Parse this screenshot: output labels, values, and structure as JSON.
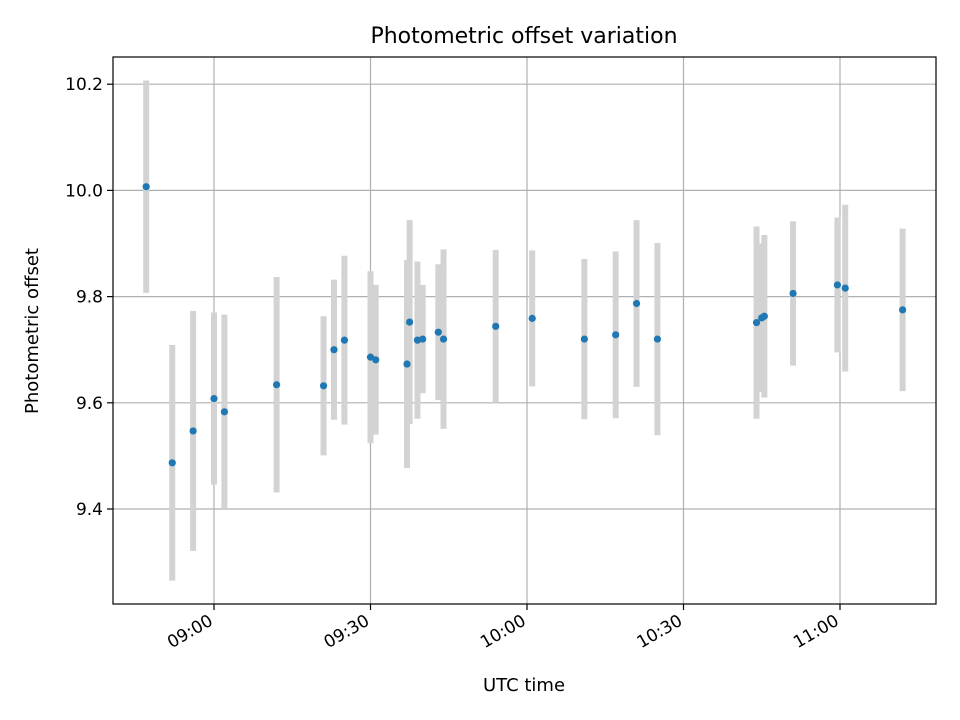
{
  "chart_data": {
    "type": "scatter",
    "title": "Photometric offset variation",
    "xlabel": "UTC time",
    "ylabel": "Photometric offset",
    "x_ticks": [
      "09:00",
      "09:30",
      "10:00",
      "10:30",
      "11:00"
    ],
    "y_ticks": [
      "9.4",
      "9.6",
      "9.8",
      "10.0",
      "10.2"
    ],
    "grid": true,
    "colors": {
      "point": "#1f77b4",
      "errorbar": "#d3d3d3",
      "grid": "#b0b0b0"
    },
    "points": [
      {
        "x": "08:47",
        "y": 10.007,
        "yerr": 0.2
      },
      {
        "x": "08:52",
        "y": 9.487,
        "yerr": 0.222
      },
      {
        "x": "08:56",
        "y": 9.547,
        "yerr": 0.226
      },
      {
        "x": "09:00",
        "y": 9.608,
        "yerr": 0.162
      },
      {
        "x": "09:02",
        "y": 9.583,
        "yerr": 0.183
      },
      {
        "x": "09:12",
        "y": 9.634,
        "yerr": 0.203
      },
      {
        "x": "09:21",
        "y": 9.632,
        "yerr": 0.131
      },
      {
        "x": "09:23",
        "y": 9.7,
        "yerr": 0.132
      },
      {
        "x": "09:25",
        "y": 9.718,
        "yerr": 0.159
      },
      {
        "x": "09:30",
        "y": 9.686,
        "yerr": 0.162
      },
      {
        "x": "09:31",
        "y": 9.681,
        "yerr": 0.141
      },
      {
        "x": "09:37",
        "y": 9.673,
        "yerr": 0.196
      },
      {
        "x": "09:37.5",
        "y": 9.752,
        "yerr": 0.192
      },
      {
        "x": "09:39",
        "y": 9.718,
        "yerr": 0.148
      },
      {
        "x": "09:40",
        "y": 9.72,
        "yerr": 0.102
      },
      {
        "x": "09:43",
        "y": 9.733,
        "yerr": 0.128
      },
      {
        "x": "09:44",
        "y": 9.72,
        "yerr": 0.169
      },
      {
        "x": "09:54",
        "y": 9.744,
        "yerr": 0.144
      },
      {
        "x": "10:01",
        "y": 9.759,
        "yerr": 0.128
      },
      {
        "x": "10:11",
        "y": 9.72,
        "yerr": 0.151
      },
      {
        "x": "10:17",
        "y": 9.728,
        "yerr": 0.157
      },
      {
        "x": "10:21",
        "y": 9.787,
        "yerr": 0.157
      },
      {
        "x": "10:25",
        "y": 9.72,
        "yerr": 0.181
      },
      {
        "x": "10:44",
        "y": 9.751,
        "yerr": 0.181
      },
      {
        "x": "10:45",
        "y": 9.76,
        "yerr": 0.14
      },
      {
        "x": "10:45.5",
        "y": 9.763,
        "yerr": 0.153
      },
      {
        "x": "10:51",
        "y": 9.806,
        "yerr": 0.136
      },
      {
        "x": "10:59.5",
        "y": 9.822,
        "yerr": 0.127
      },
      {
        "x": "11:01",
        "y": 9.816,
        "yerr": 0.157
      },
      {
        "x": "11:12",
        "y": 9.775,
        "yerr": 0.153
      }
    ]
  }
}
